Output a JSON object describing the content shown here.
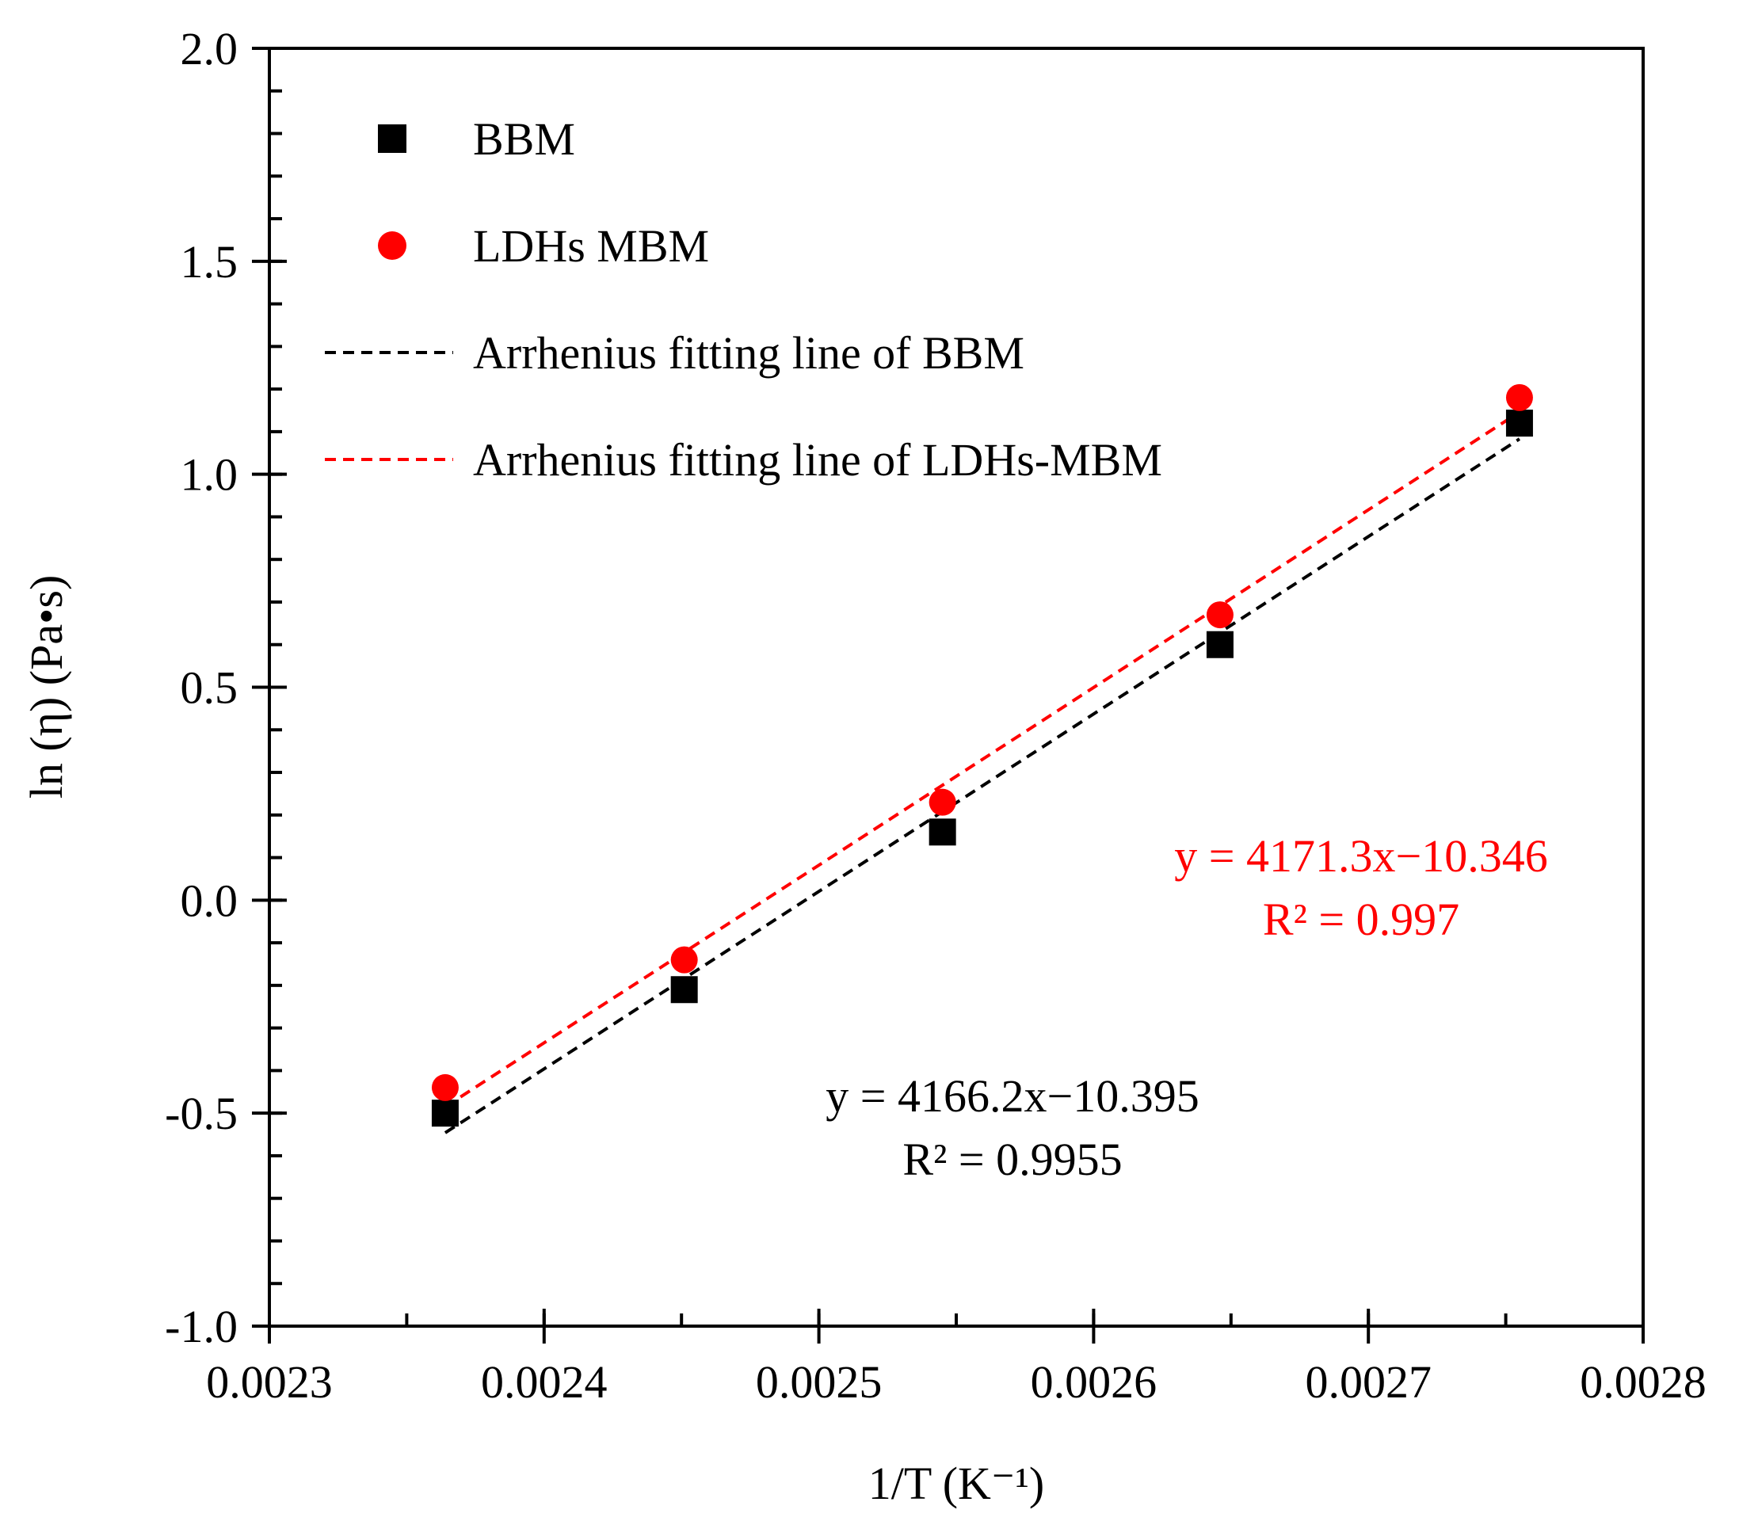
{
  "chart_data": {
    "type": "scatter",
    "xlabel": "1/T (K⁻¹)",
    "ylabel": "ln (η) (Pa•s)",
    "xlim": [
      0.0023,
      0.0028
    ],
    "ylim": [
      -1.0,
      2.0
    ],
    "x_ticks": [
      "0.0023",
      "0.0024",
      "0.0025",
      "0.0026",
      "0.0027",
      "0.0028"
    ],
    "x_tick_values": [
      0.0023,
      0.0024,
      0.0025,
      0.0026,
      0.0027,
      0.0028
    ],
    "y_ticks": [
      "-1.0",
      "-0.5",
      "0.0",
      "0.5",
      "1.0",
      "1.5",
      "2.0"
    ],
    "y_tick_values": [
      -1.0,
      -0.5,
      0.0,
      0.5,
      1.0,
      1.5,
      2.0
    ],
    "x_minor_step": 5e-05,
    "y_minor_step": 0.1,
    "series": [
      {
        "name": "BBM",
        "marker": "square",
        "color": "#000000",
        "x": [
          0.002364,
          0.002451,
          0.002545,
          0.002646,
          0.002755
        ],
        "y": [
          -0.5,
          -0.21,
          0.16,
          0.6,
          1.12
        ]
      },
      {
        "name": "LDHs MBM",
        "marker": "circle",
        "color": "#ff0000",
        "x": [
          0.002364,
          0.002451,
          0.002545,
          0.002646,
          0.002755
        ],
        "y": [
          -0.44,
          -0.14,
          0.23,
          0.67,
          1.18
        ]
      }
    ],
    "fits": [
      {
        "name": "Arrhenius fitting line of BBM",
        "color": "#000000",
        "slope": 4166.2,
        "intercept": -10.395,
        "x_range": [
          0.002364,
          0.002755
        ],
        "equation": "y = 4166.2x−10.395",
        "r2": "R² = 0.9955"
      },
      {
        "name": "Arrhenius fitting line of LDHs-MBM",
        "color": "#ff0000",
        "slope": 4171.3,
        "intercept": -10.346,
        "x_range": [
          0.002364,
          0.002755
        ],
        "equation": "y = 4171.3x−10.346",
        "r2": "R² = 0.997"
      }
    ],
    "legend": {
      "position": "top-left",
      "entries": [
        {
          "label": "BBM",
          "kind": "square",
          "color": "#000000"
        },
        {
          "label": "LDHs MBM",
          "kind": "circle",
          "color": "#ff0000"
        },
        {
          "label": "Arrhenius fitting line of BBM",
          "kind": "dash",
          "color": "#000000"
        },
        {
          "label": "Arrhenius fitting line of LDHs-MBM",
          "kind": "dash",
          "color": "#ff0000"
        }
      ]
    }
  }
}
